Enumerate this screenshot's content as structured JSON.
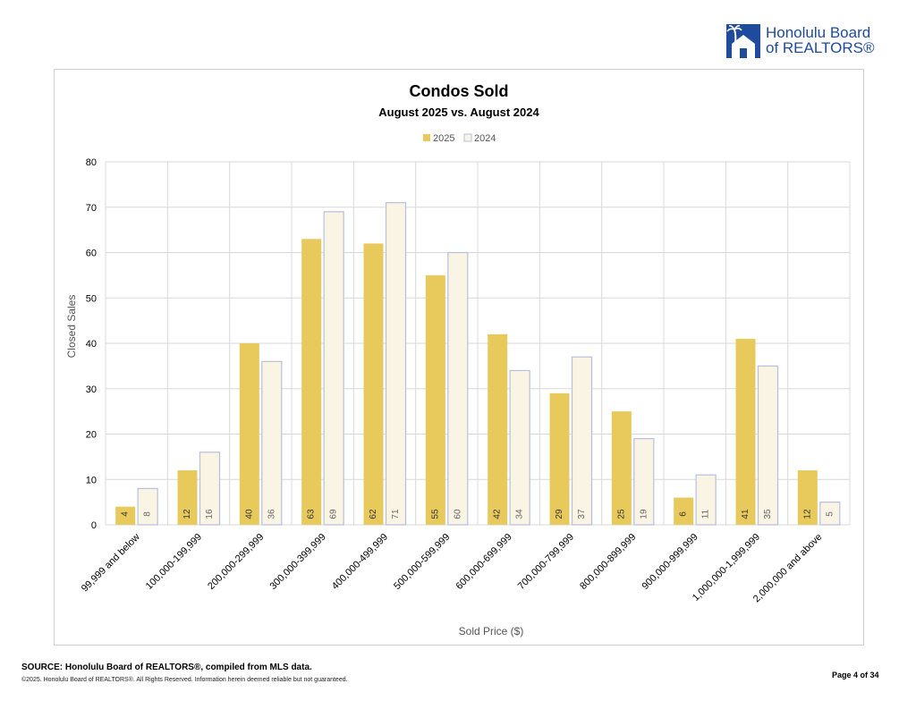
{
  "header": {
    "logo_line1": "Honolulu Board",
    "logo_line2": "of REALTORS®"
  },
  "chart_data": {
    "type": "bar",
    "title": "Condos Sold",
    "subtitle": "August 2025 vs. August 2024",
    "xlabel": "Sold Price ($)",
    "ylabel": "Closed Sales",
    "ylim": [
      0,
      80
    ],
    "yticks": [
      0,
      10,
      20,
      30,
      40,
      50,
      60,
      70,
      80
    ],
    "grid": true,
    "legend_position": "top-center",
    "categories": [
      "99,999 and below",
      "100,000-199,999",
      "200,000-299,999",
      "300,000-399,999",
      "400,000-499,999",
      "500,000-599,999",
      "600,000-699,999",
      "700,000-799,999",
      "800,000-899,999",
      "900,000-999,999",
      "1,000,000-1,999,999",
      "2,000,000 and above"
    ],
    "series": [
      {
        "name": "2025",
        "values": [
          4,
          12,
          40,
          63,
          62,
          55,
          42,
          29,
          25,
          6,
          41,
          12
        ],
        "color": "#e8c95c"
      },
      {
        "name": "2024",
        "values": [
          8,
          16,
          36,
          69,
          71,
          60,
          34,
          37,
          19,
          11,
          35,
          5
        ],
        "color": "#faf4e4"
      }
    ]
  },
  "footer": {
    "source": "SOURCE: Honolulu Board of REALTORS®, compiled from MLS data.",
    "copyright": "©2025. Honolulu Board of REALTORS®. All Rights Reserved. Information herein deemed reliable but not guaranteed.",
    "page": "Page 4 of 34"
  }
}
